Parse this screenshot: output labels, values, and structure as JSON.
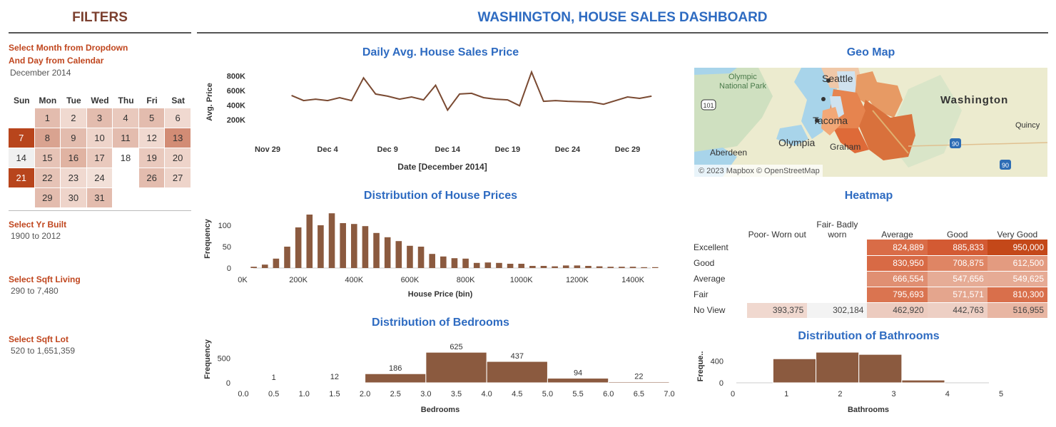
{
  "filters": {
    "title": "FILTERS",
    "date_label_line1": "Select Month from Dropdown",
    "date_label_line2": "And Day from Calendar",
    "month_value": "December 2014",
    "calendar": {
      "weekdays": [
        "Sun",
        "Mon",
        "Tue",
        "Wed",
        "Thu",
        "Fri",
        "Sat"
      ],
      "start_offset": 1,
      "days": [
        {
          "d": "1",
          "c": "#e3bcae"
        },
        {
          "d": "2",
          "c": "#f0d9d0"
        },
        {
          "d": "3",
          "c": "#e3bcae"
        },
        {
          "d": "4",
          "c": "#e9c9bd"
        },
        {
          "d": "5",
          "c": "#e3bcae"
        },
        {
          "d": "6",
          "c": "#f0d9d0"
        },
        {
          "d": "7",
          "c": "#b8451c"
        },
        {
          "d": "8",
          "c": "#d9a390"
        },
        {
          "d": "9",
          "c": "#e3bcae"
        },
        {
          "d": "10",
          "c": "#eed4ca"
        },
        {
          "d": "11",
          "c": "#e3bcae"
        },
        {
          "d": "12",
          "c": "#f0d9d0"
        },
        {
          "d": "13",
          "c": "#d28c75"
        },
        {
          "d": "14",
          "c": "#f0f0f0"
        },
        {
          "d": "15",
          "c": "#e6c3b6"
        },
        {
          "d": "16",
          "c": "#e0b3a2"
        },
        {
          "d": "17",
          "c": "#e9c9bd"
        },
        {
          "d": "18",
          "c": "#ffffff"
        },
        {
          "d": "19",
          "c": "#e9c9bd"
        },
        {
          "d": "20",
          "c": "#eed4ca"
        },
        {
          "d": "21",
          "c": "#b8451c"
        },
        {
          "d": "22",
          "c": "#e6c3b6"
        },
        {
          "d": "23",
          "c": "#f0d9d0"
        },
        {
          "d": "24",
          "c": "#f2e0d8"
        },
        {
          "d": "",
          "c": "#ffffff"
        },
        {
          "d": "26",
          "c": "#e3bcae"
        },
        {
          "d": "27",
          "c": "#eed4ca"
        },
        {
          "d": "",
          "c": "#ffffff"
        },
        {
          "d": "29",
          "c": "#e3bcae"
        },
        {
          "d": "30",
          "c": "#eed4ca"
        },
        {
          "d": "31",
          "c": "#e3bcae"
        }
      ]
    },
    "yr_built_label": "Select Yr Built",
    "yr_built_value": "1900 to 2012",
    "sqft_living_label": "Select Sqft Living",
    "sqft_living_value": "290 to 7,480",
    "sqft_lot_label": "Select Sqft Lot",
    "sqft_lot_value": "520 to 1,651,359"
  },
  "dashboard_title": "WASHINGTON, HOUSE SALES DASHBOARD",
  "colors": {
    "accent_blue": "#2e6bc1",
    "filter_red": "#c0461e",
    "bar_brown": "#8b5a3f"
  },
  "geo_map": {
    "title": "Geo Map",
    "labels": [
      "Olympic",
      "National Park",
      "Seattle",
      "Tacoma",
      "Olympia",
      "Graham",
      "Aberdeen",
      "Washington",
      "Quincy"
    ],
    "shields": [
      "101",
      "90",
      "90"
    ],
    "attribution": "© 2023 Mapbox © OpenStreetMap"
  },
  "heatmap": {
    "title": "Heatmap",
    "columns": [
      "Poor- Worn out",
      "Fair- Badly worn",
      "Average",
      "Good",
      "Very Good"
    ],
    "rows": [
      {
        "label": "Excellent",
        "cells": [
          {
            "v": "",
            "c": "#ffffff"
          },
          {
            "v": "",
            "c": "#ffffff"
          },
          {
            "v": "824,889",
            "c": "#d96c47"
          },
          {
            "v": "885,833",
            "c": "#d35a33"
          },
          {
            "v": "950,000",
            "c": "#c44819"
          }
        ]
      },
      {
        "label": "Good",
        "cells": [
          {
            "v": "",
            "c": "#ffffff"
          },
          {
            "v": "",
            "c": "#ffffff"
          },
          {
            "v": "830,950",
            "c": "#d86a45"
          },
          {
            "v": "708,875",
            "c": "#df8564"
          },
          {
            "v": "612,500",
            "c": "#e39b80"
          }
        ]
      },
      {
        "label": "Average",
        "cells": [
          {
            "v": "",
            "c": "#ffffff"
          },
          {
            "v": "",
            "c": "#ffffff"
          },
          {
            "v": "666,554",
            "c": "#e08f72"
          },
          {
            "v": "547,656",
            "c": "#e6ac96"
          },
          {
            "v": "549,625",
            "c": "#e6ab95"
          }
        ]
      },
      {
        "label": "Fair",
        "cells": [
          {
            "v": "",
            "c": "#ffffff"
          },
          {
            "v": "",
            "c": "#ffffff"
          },
          {
            "v": "795,693",
            "c": "#da7450"
          },
          {
            "v": "571,571",
            "c": "#e4a58d"
          },
          {
            "v": "810,300",
            "c": "#d96f4b"
          }
        ]
      },
      {
        "label": "No View",
        "cells": [
          {
            "v": "393,375",
            "c": "#f0d8cf"
          },
          {
            "v": "302,184",
            "c": "#f3f3f3"
          },
          {
            "v": "462,920",
            "c": "#eccbbf"
          },
          {
            "v": "442,763",
            "c": "#edcfc4"
          },
          {
            "v": "516,955",
            "c": "#e8b6a3"
          }
        ]
      }
    ]
  },
  "chart_data": [
    {
      "type": "line",
      "title": "Daily Avg. House Sales Price",
      "xlabel": "Date [December 2014]",
      "ylabel": "Avg. Price",
      "x_ticks": [
        "Nov 29",
        "Dec 4",
        "Dec 9",
        "Dec 14",
        "Dec 19",
        "Dec 24",
        "Dec 29"
      ],
      "y_ticks": [
        "200K",
        "400K",
        "600K",
        "800K"
      ],
      "x": [
        "2014-12-01",
        "2014-12-02",
        "2014-12-03",
        "2014-12-04",
        "2014-12-05",
        "2014-12-06",
        "2014-12-07",
        "2014-12-08",
        "2014-12-09",
        "2014-12-10",
        "2014-12-11",
        "2014-12-12",
        "2014-12-13",
        "2014-12-14",
        "2014-12-15",
        "2014-12-16",
        "2014-12-17",
        "2014-12-18",
        "2014-12-19",
        "2014-12-20",
        "2014-12-21",
        "2014-12-22",
        "2014-12-23",
        "2014-12-24",
        "2014-12-26",
        "2014-12-27",
        "2014-12-29",
        "2014-12-30",
        "2014-12-31"
      ],
      "values": [
        530000,
        460000,
        480000,
        460000,
        500000,
        460000,
        770000,
        550000,
        520000,
        480000,
        510000,
        470000,
        670000,
        330000,
        550000,
        560000,
        500000,
        480000,
        470000,
        390000,
        850000,
        450000,
        460000,
        450000,
        440000,
        410000,
        510000,
        490000,
        520000
      ],
      "ylim": [
        100000,
        900000
      ]
    },
    {
      "type": "bar",
      "title": "Distribution of House Prices",
      "xlabel": "House Price (bin)",
      "ylabel": "Frequency",
      "x_ticks": [
        "0K",
        "200K",
        "400K",
        "600K",
        "800K",
        "1000K",
        "1200K",
        "1400K"
      ],
      "y_ticks": [
        "0",
        "50",
        "100"
      ],
      "bin_width": 40000,
      "x": [
        40000,
        80000,
        120000,
        160000,
        200000,
        240000,
        280000,
        320000,
        360000,
        400000,
        440000,
        480000,
        520000,
        560000,
        600000,
        640000,
        680000,
        720000,
        760000,
        800000,
        840000,
        880000,
        920000,
        960000,
        1000000,
        1040000,
        1080000,
        1120000,
        1160000,
        1200000,
        1240000,
        1280000,
        1320000,
        1360000,
        1400000,
        1440000,
        1480000
      ],
      "values": [
        3,
        8,
        22,
        50,
        95,
        125,
        100,
        128,
        105,
        103,
        98,
        82,
        72,
        63,
        52,
        50,
        33,
        27,
        23,
        22,
        12,
        13,
        12,
        10,
        10,
        5,
        5,
        4,
        6,
        6,
        5,
        4,
        3,
        3,
        3,
        2,
        2
      ],
      "ylim": [
        0,
        130
      ]
    },
    {
      "type": "bar",
      "title": "Distribution of Bedrooms",
      "xlabel": "Bedrooms",
      "ylabel": "Frequency",
      "x_ticks": [
        "0.0",
        "0.5",
        "1.0",
        "1.5",
        "2.0",
        "2.5",
        "3.0",
        "3.5",
        "4.0",
        "4.5",
        "5.0",
        "5.5",
        "6.0",
        "6.5",
        "7.0"
      ],
      "y_ticks": [
        "0",
        "500"
      ],
      "categories": [
        "0-1",
        "1-2",
        "2-3",
        "3-4",
        "4-5",
        "5-6",
        "6-7"
      ],
      "values": [
        1,
        12,
        186,
        625,
        437,
        94,
        22
      ],
      "labels": [
        "1",
        "12",
        "186",
        "625",
        "437",
        "94",
        "22"
      ],
      "ylim": [
        0,
        700
      ]
    },
    {
      "type": "bar",
      "title": "Distribution of Bathrooms",
      "xlabel": "Bathrooms",
      "ylabel": "Freque..",
      "x_ticks": [
        "0",
        "1",
        "2",
        "3",
        "4",
        "5"
      ],
      "y_ticks": [
        "0",
        "400"
      ],
      "categories": [
        "0.75-1.5",
        "1.5-2.25",
        "2.25-3",
        "3-4"
      ],
      "values": [
        440,
        560,
        520,
        50
      ],
      "ylim": [
        0,
        600
      ]
    }
  ]
}
